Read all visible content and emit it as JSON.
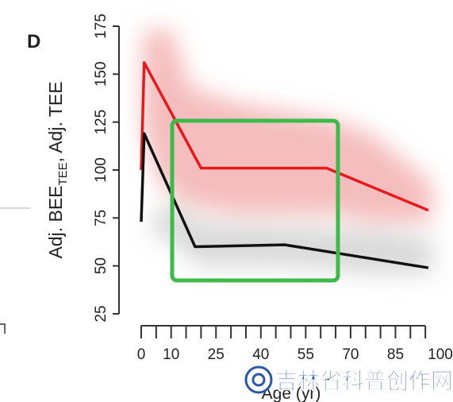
{
  "chart_data": {
    "type": "line",
    "panel_label": "D",
    "ylabel_parts": [
      "Adj. BEE",
      "TEE",
      ", Adj. TEE"
    ],
    "xlabel": "Age (yr)",
    "watermark": "吉林省科普创作网",
    "xlim": [
      0,
      100
    ],
    "ylim": [
      25,
      175
    ],
    "xticks": [
      0,
      10,
      25,
      40,
      55,
      70,
      85,
      100
    ],
    "xminorticks": [
      5,
      15,
      20,
      30,
      35,
      45,
      50,
      60,
      65,
      75,
      80,
      90,
      95
    ],
    "yticks": [
      25,
      50,
      75,
      100,
      125,
      150,
      175
    ],
    "series": [
      {
        "color": "#e8191c",
        "x": [
          0,
          1,
          20,
          62,
          96
        ],
        "values": [
          100,
          156,
          101,
          101,
          79
        ]
      },
      {
        "color": "#111111",
        "x": [
          0,
          1,
          18,
          48,
          96
        ],
        "values": [
          73,
          119,
          60,
          61,
          49
        ]
      }
    ]
  }
}
